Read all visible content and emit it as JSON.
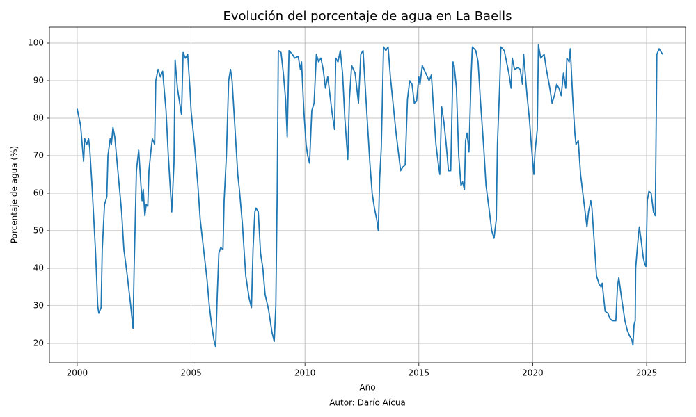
{
  "chart_data": {
    "type": "line",
    "title": "Evolución del porcentaje de agua en La Baells",
    "xlabel": "Año",
    "ylabel": "Porcentaje de agua (%)",
    "caption": "Autor: Darío Aícua",
    "color": "#1f77b4",
    "grid": true,
    "xlim": [
      1998.78,
      2026.71
    ],
    "ylim": [
      14.8,
      104.26
    ],
    "xticks": [
      2000,
      2005,
      2010,
      2015,
      2020,
      2025
    ],
    "yticks": [
      20,
      30,
      40,
      50,
      60,
      70,
      80,
      90,
      100
    ],
    "x": [
      2000.0,
      2000.15,
      2000.28,
      2000.33,
      2000.42,
      2000.5,
      2000.55,
      2000.65,
      2000.8,
      2000.85,
      2000.9,
      2000.95,
      2001.05,
      2001.1,
      2001.2,
      2001.3,
      2001.35,
      2001.45,
      2001.5,
      2001.57,
      2001.65,
      2001.8,
      2001.95,
      2002.05,
      2002.2,
      2002.35,
      2002.45,
      2002.5,
      2002.6,
      2002.7,
      2002.8,
      2002.85,
      2002.9,
      2002.97,
      2003.03,
      2003.1,
      2003.15,
      2003.25,
      2003.3,
      2003.4,
      2003.45,
      2003.55,
      2003.65,
      2003.75,
      2003.9,
      2004.0,
      2004.1,
      2004.15,
      2004.25,
      2004.3,
      2004.4,
      2004.5,
      2004.58,
      2004.65,
      2004.75,
      2004.85,
      2004.95,
      2005.0,
      2005.15,
      2005.3,
      2005.4,
      2005.55,
      2005.7,
      2005.8,
      2005.9,
      2006.0,
      2006.08,
      2006.15,
      2006.22,
      2006.3,
      2006.4,
      2006.45,
      2006.55,
      2006.65,
      2006.73,
      2006.8,
      2006.95,
      2007.05,
      2007.12,
      2007.25,
      2007.4,
      2007.55,
      2007.65,
      2007.72,
      2007.8,
      2007.85,
      2007.95,
      2008.05,
      2008.15,
      2008.25,
      2008.4,
      2008.55,
      2008.65,
      2008.72,
      2008.78,
      2008.83,
      2008.95,
      2009.05,
      2009.15,
      2009.22,
      2009.3,
      2009.45,
      2009.55,
      2009.7,
      2009.8,
      2009.85,
      2009.95,
      2010.05,
      2010.12,
      2010.2,
      2010.3,
      2010.4,
      2010.5,
      2010.6,
      2010.7,
      2010.8,
      2010.9,
      2011.0,
      2011.1,
      2011.2,
      2011.3,
      2011.35,
      2011.45,
      2011.55,
      2011.65,
      2011.75,
      2011.88,
      2011.95,
      2012.05,
      2012.2,
      2012.35,
      2012.45,
      2012.55,
      2012.65,
      2012.75,
      2012.85,
      2012.95,
      2013.05,
      2013.15,
      2013.22,
      2013.28,
      2013.35,
      2013.45,
      2013.55,
      2013.65,
      2013.75,
      2013.9,
      2014.0,
      2014.12,
      2014.2,
      2014.3,
      2014.4,
      2014.5,
      2014.6,
      2014.7,
      2014.8,
      2014.9,
      2015.0,
      2015.05,
      2015.15,
      2015.3,
      2015.45,
      2015.55,
      2015.65,
      2015.75,
      2015.85,
      2015.92,
      2016.0,
      2016.1,
      2016.2,
      2016.3,
      2016.4,
      2016.5,
      2016.55,
      2016.65,
      2016.75,
      2016.85,
      2016.92,
      2017.0,
      2017.05,
      2017.12,
      2017.2,
      2017.3,
      2017.35,
      2017.5,
      2017.6,
      2017.7,
      2017.85,
      2017.95,
      2018.1,
      2018.2,
      2018.3,
      2018.4,
      2018.45,
      2018.55,
      2018.6,
      2018.75,
      2018.85,
      2018.95,
      2019.05,
      2019.1,
      2019.2,
      2019.35,
      2019.45,
      2019.55,
      2019.6,
      2019.75,
      2019.85,
      2019.95,
      2020.05,
      2020.1,
      2020.2,
      2020.25,
      2020.35,
      2020.5,
      2020.6,
      2020.75,
      2020.85,
      2020.95,
      2021.05,
      2021.15,
      2021.25,
      2021.35,
      2021.45,
      2021.5,
      2021.6,
      2021.65,
      2021.75,
      2021.85,
      2021.9,
      2022.0,
      2022.1,
      2022.2,
      2022.3,
      2022.38,
      2022.45,
      2022.55,
      2022.6,
      2022.7,
      2022.8,
      2022.9,
      2023.0,
      2023.05,
      2023.1,
      2023.18,
      2023.3,
      2023.4,
      2023.5,
      2023.6,
      2023.65,
      2023.72,
      2023.78,
      2023.88,
      2023.95,
      2024.05,
      2024.15,
      2024.25,
      2024.35,
      2024.4,
      2024.45,
      2024.5,
      2024.52,
      2024.6,
      2024.68,
      2024.75,
      2024.85,
      2024.92,
      2024.97,
      2025.03,
      2025.1,
      2025.2,
      2025.3,
      2025.38,
      2025.45,
      2025.55,
      2025.65,
      2025.7
    ],
    "values": [
      82.5,
      78,
      68.5,
      74.5,
      73,
      74.5,
      72,
      62,
      45,
      38,
      30,
      28,
      29.5,
      45,
      57,
      59,
      70,
      74.5,
      73,
      77.5,
      75,
      65,
      55,
      45,
      38,
      30,
      24,
      40,
      66,
      71.5,
      62,
      58,
      61,
      54,
      57,
      56.5,
      66,
      72,
      74.5,
      73,
      90,
      93,
      91,
      92.5,
      82,
      70,
      60,
      55,
      68,
      95.5,
      88,
      84,
      81,
      97.5,
      96,
      97,
      88,
      82,
      73,
      62,
      53,
      45,
      37,
      30,
      25,
      21,
      19,
      33,
      44,
      45.5,
      45,
      58,
      70,
      90,
      93,
      90,
      75,
      65,
      61,
      52,
      38,
      32,
      29.5,
      45,
      55,
      56,
      55,
      44,
      40,
      33,
      29,
      23,
      20.5,
      30,
      60,
      98,
      97.5,
      92,
      85,
      75,
      98,
      97,
      96,
      96.5,
      93,
      95,
      82,
      73,
      70,
      68,
      82,
      84,
      97,
      95,
      96,
      93,
      88,
      91,
      86,
      81,
      77,
      96,
      95,
      98,
      92,
      80,
      69,
      85,
      94,
      92,
      84,
      97,
      98,
      88,
      78,
      68,
      60,
      56,
      53,
      50,
      64,
      72,
      99,
      98,
      99,
      91,
      82,
      76,
      70,
      66,
      67,
      67.5,
      85,
      90,
      89,
      84,
      84.5,
      91,
      89,
      94,
      92,
      90,
      91.5,
      82,
      73,
      68,
      65,
      83,
      79,
      73,
      66,
      66,
      95,
      94,
      88,
      70,
      62,
      63,
      61,
      74,
      76,
      71,
      92,
      99,
      98,
      95,
      85,
      72,
      62,
      55,
      50,
      48,
      53,
      73,
      89,
      99,
      98,
      95,
      92,
      88,
      96,
      93,
      93.5,
      93,
      89,
      97,
      86,
      80,
      72,
      65,
      71,
      77,
      99.5,
      96,
      97,
      93,
      88,
      84,
      86,
      89,
      88,
      86,
      92,
      88,
      96,
      95,
      98.5,
      86,
      76,
      73,
      74,
      65,
      60,
      55,
      51,
      55,
      58,
      56,
      47,
      38,
      36,
      35,
      36,
      33,
      28.5,
      28,
      26.5,
      26,
      26,
      26,
      35,
      37.5,
      33,
      30,
      26,
      23.5,
      22,
      21,
      19.5,
      25,
      26,
      40,
      46,
      51,
      48,
      43,
      41,
      40.5,
      58,
      60.5,
      60,
      55,
      54,
      97,
      98.5,
      97.5,
      97
    ]
  }
}
